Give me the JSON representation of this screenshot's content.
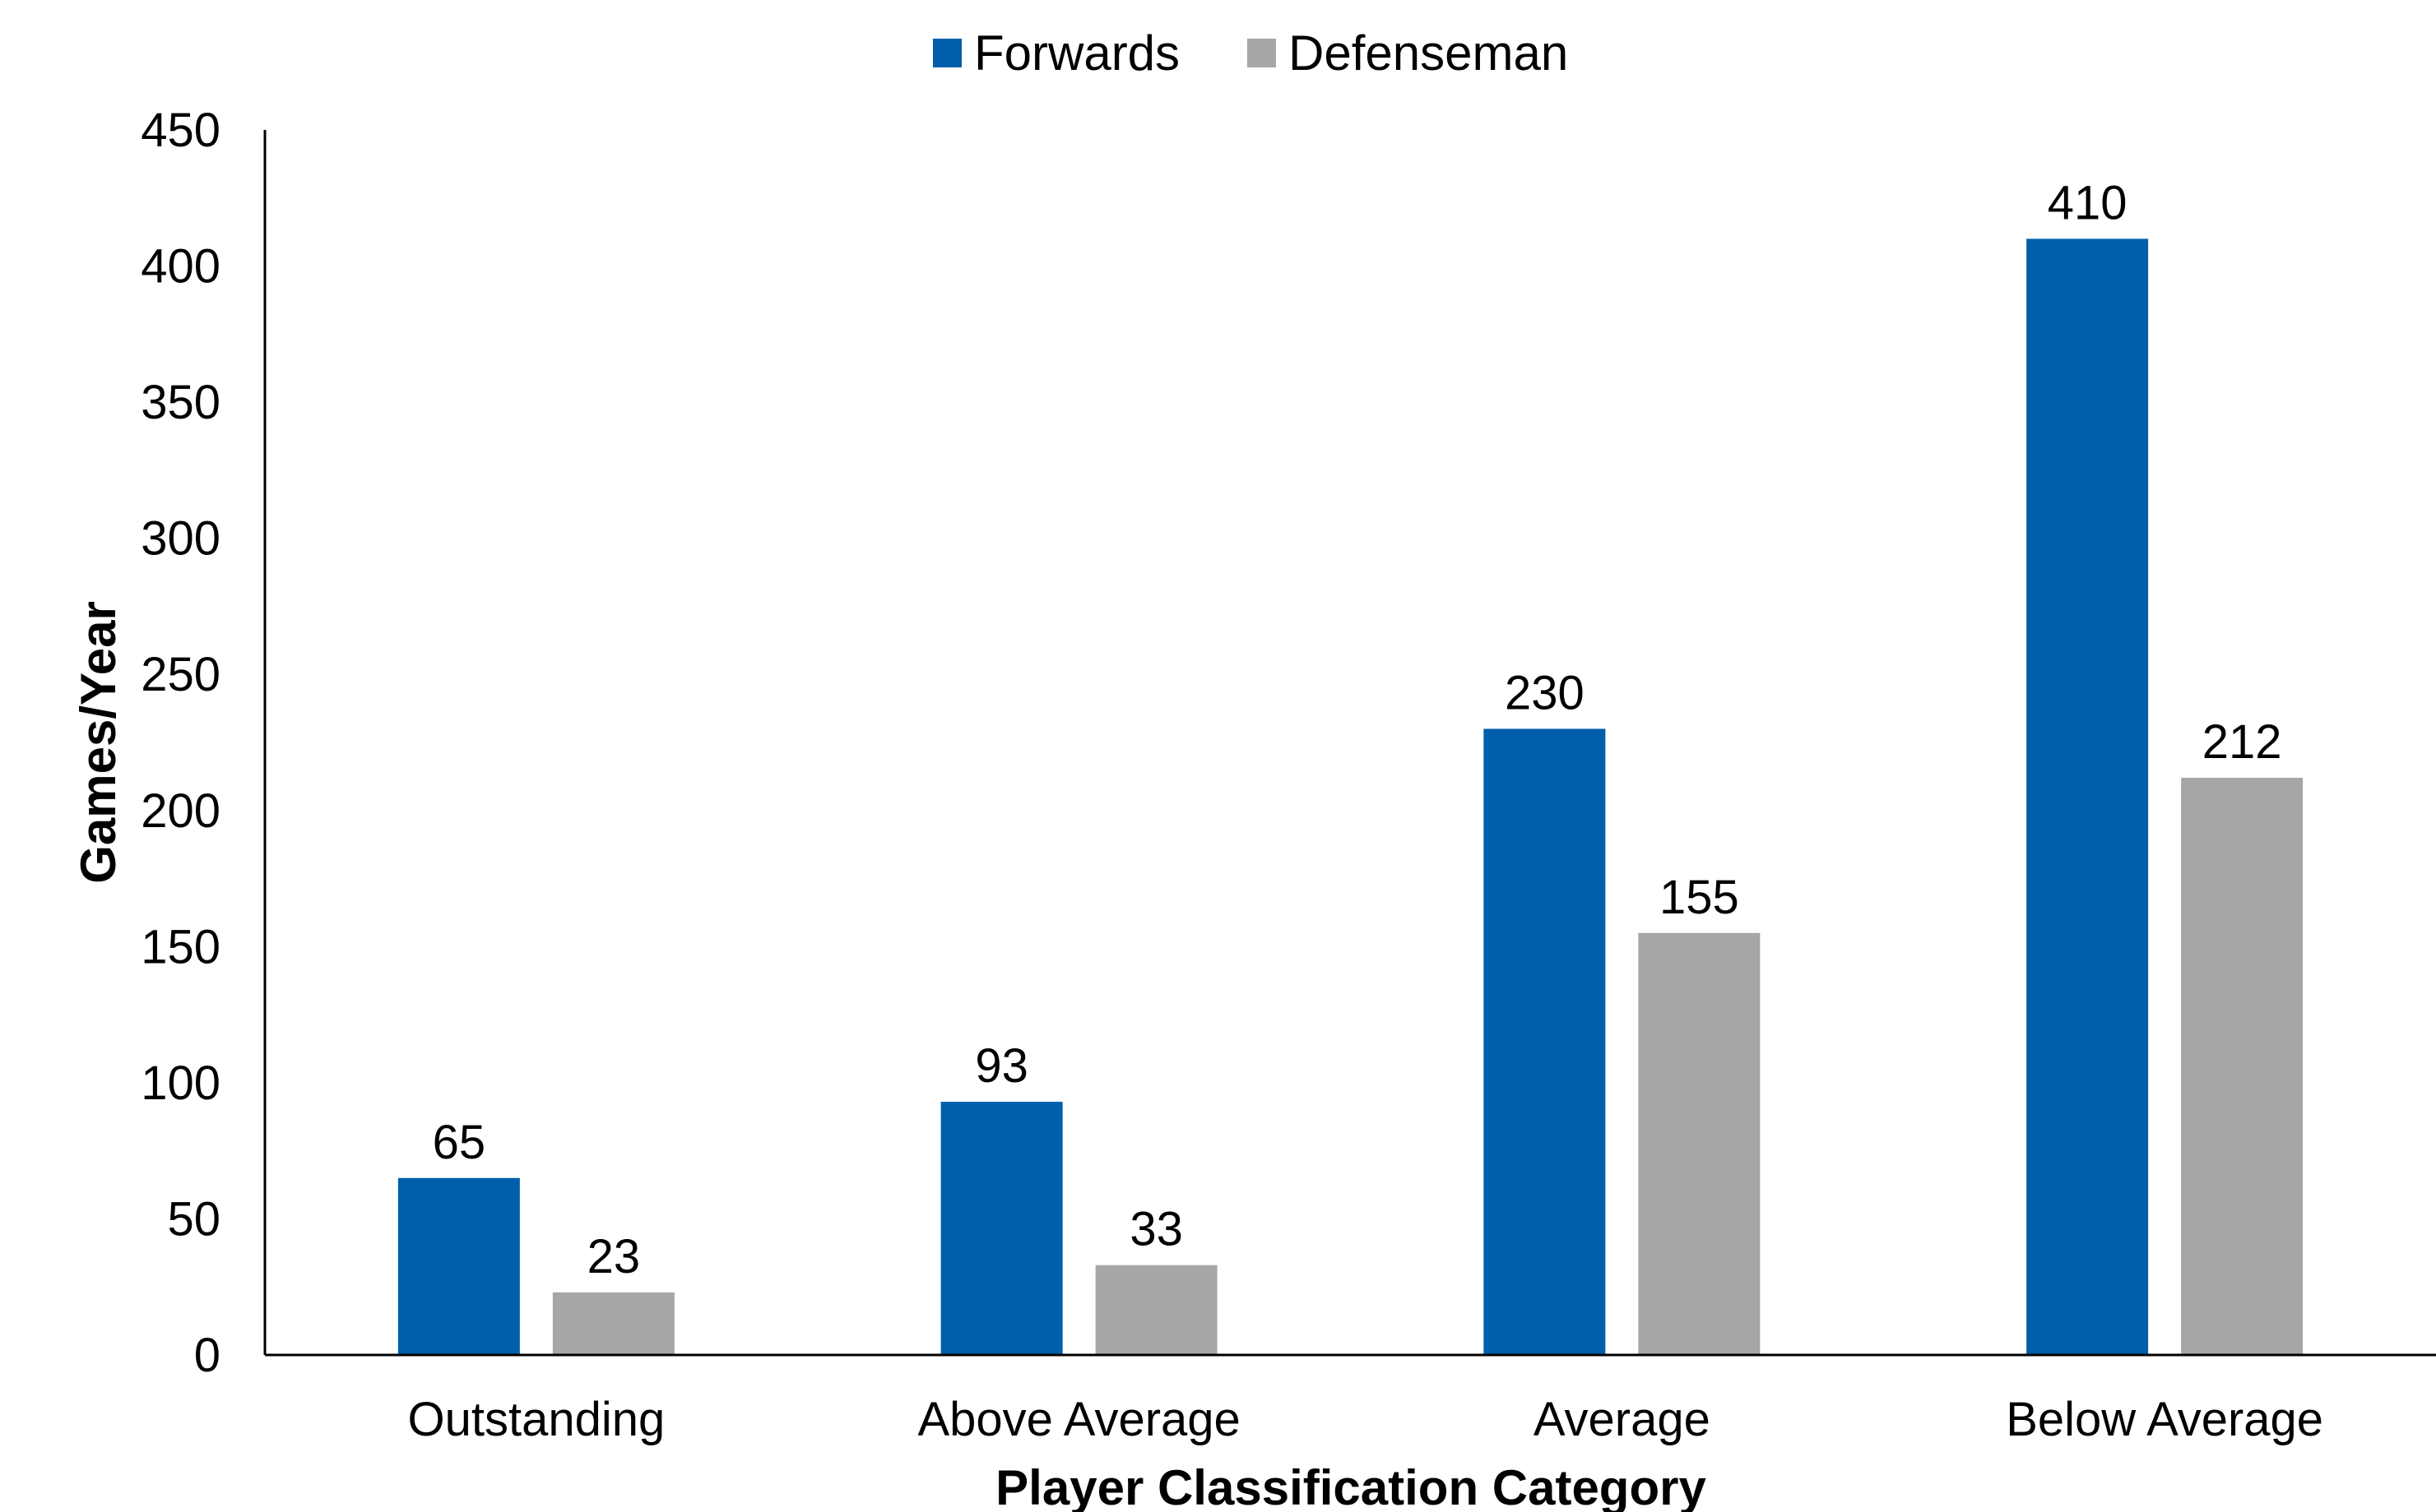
{
  "chart_data": {
    "type": "bar",
    "categories": [
      "Outstanding",
      "Above Average",
      "Average",
      "Below Average"
    ],
    "series": [
      {
        "name": "Forwards",
        "values": [
          65,
          93,
          230,
          410
        ],
        "color": "#005EAA"
      },
      {
        "name": "Defenseman",
        "values": [
          23,
          33,
          155,
          212
        ],
        "color": "#A6A6A6"
      }
    ],
    "xlabel": "Player Classification Category",
    "ylabel": "Games/Year",
    "ylim": [
      0,
      450
    ],
    "yticks": [
      0,
      50,
      100,
      150,
      200,
      250,
      300,
      350,
      400,
      450
    ],
    "grid": false,
    "legend_position": "top-center",
    "data_labels": true
  }
}
